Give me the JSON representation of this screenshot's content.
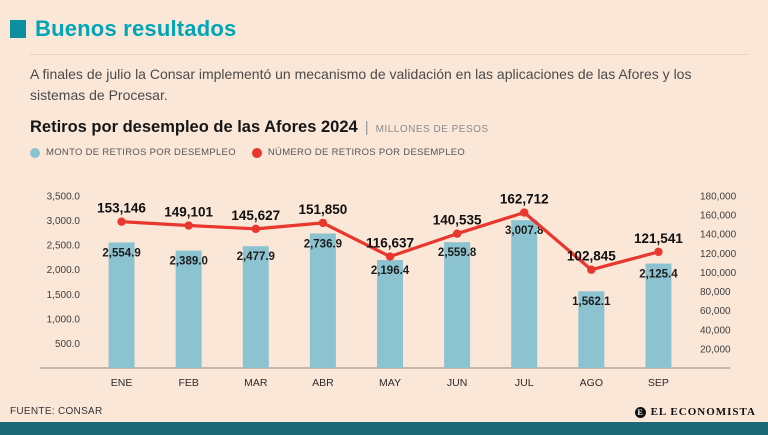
{
  "accent": {
    "teal": "#00a5b8",
    "teal_square": "#0c8fa0",
    "bar": "#8cc3d1",
    "red": "#e8372d",
    "background": "#fbe7d8",
    "footer_bar": "#1b6877"
  },
  "header": {
    "title": "Buenos resultados",
    "description": "A finales de julio la Consar implementó un mecanismo de validación en las aplicaciones de las Afores y los sistemas de Procesar."
  },
  "chart_header": {
    "title": "Retiros por desempleo de las Afores 2024",
    "separator": "|",
    "unit": "MILLONES DE PESOS"
  },
  "legend": [
    {
      "label": "MONTO DE RETIROS POR DESEMPLEO",
      "color": "#8cc3d1"
    },
    {
      "label": "NÚMERO DE RETIROS POR DESEMPLEO",
      "color": "#e8372d"
    }
  ],
  "footer": {
    "source": "FUENTE: CONSAR",
    "brand": "EL ECONOMISTA",
    "brand_initial": "E"
  },
  "chart_data": {
    "type": "bar",
    "subtype": "bar+line dual axis",
    "title": "Retiros por desempleo de las Afores 2024",
    "unit": "MILLONES DE PESOS",
    "categories": [
      "ENE",
      "FEB",
      "MAR",
      "ABR",
      "MAY",
      "JUN",
      "JUL",
      "AGO",
      "SEP"
    ],
    "series": [
      {
        "name": "MONTO DE RETIROS POR DESEMPLEO",
        "type": "bar",
        "axis": "left",
        "values": [
          2554.9,
          2389.0,
          2477.9,
          2736.9,
          2196.4,
          2559.8,
          3007.8,
          1562.1,
          2125.4
        ],
        "labels": [
          "2,554.9",
          "2,389.0",
          "2,477.9",
          "2,736.9",
          "2,196.4",
          "2,559.8",
          "3,007.8",
          "1,562.1",
          "2,125.4"
        ]
      },
      {
        "name": "NÚMERO DE RETIROS POR DESEMPLEO",
        "type": "line",
        "axis": "right",
        "values": [
          153146,
          149101,
          145627,
          151850,
          116637,
          140535,
          162712,
          102845,
          121541
        ],
        "labels": [
          "153,146",
          "149,101",
          "145,627",
          "151,850",
          "116,637",
          "140,535",
          "162,712",
          "102,845",
          "121,541"
        ]
      }
    ],
    "left_axis": {
      "min": 0,
      "max": 3500,
      "tick_values": [
        3500,
        3000,
        2500,
        2000,
        1500,
        1000,
        500
      ],
      "ticks": [
        "3,500.0",
        "3,000.0",
        "2,500.0",
        "2,000.0",
        "1,500.0",
        "1,000.0",
        "500.0"
      ]
    },
    "right_axis": {
      "min": 0,
      "max": 180000,
      "tick_values": [
        180000,
        160000,
        140000,
        120000,
        100000,
        80000,
        60000,
        40000,
        20000
      ],
      "ticks": [
        "180,000",
        "160,000",
        "140,000",
        "120,000",
        "100,000",
        "80,000",
        "60,000",
        "40,000",
        "20,000"
      ]
    },
    "grid": false,
    "legend_position": "top-left"
  }
}
